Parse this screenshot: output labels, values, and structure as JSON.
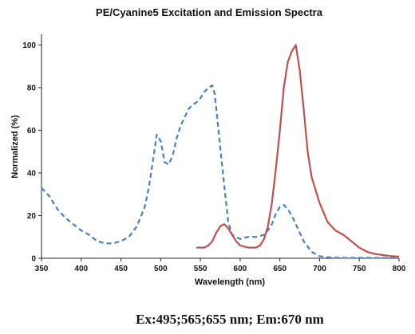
{
  "chart_data": {
    "type": "line",
    "title": "PE/Cyanine5 Excitation and Emission Spectra",
    "xlabel": "Wavelength (nm)",
    "ylabel": "Normalized (%)",
    "xlim": [
      350,
      800
    ],
    "ylim": [
      0,
      105
    ],
    "x_ticks": [
      350,
      400,
      450,
      500,
      550,
      600,
      650,
      700,
      750,
      800
    ],
    "y_ticks": [
      0,
      20,
      40,
      60,
      80,
      100
    ],
    "grid": false,
    "legend": "none",
    "series": [
      {
        "role": "excitation",
        "color": "#4a7fc1",
        "style": "dashed",
        "x": [
          350,
          360,
          370,
          380,
          390,
          400,
          410,
          420,
          430,
          440,
          450,
          460,
          470,
          480,
          485,
          490,
          495,
          500,
          505,
          510,
          515,
          520,
          525,
          530,
          535,
          540,
          545,
          550,
          555,
          560,
          565,
          568,
          570,
          575,
          580,
          585,
          590,
          595,
          600,
          610,
          620,
          630,
          635,
          640,
          645,
          650,
          655,
          660,
          665,
          670,
          680,
          690,
          700,
          710,
          720,
          740,
          760,
          780,
          800
        ],
        "y": [
          33,
          29,
          23,
          19,
          16,
          13,
          11,
          8,
          7,
          7,
          8,
          10,
          15,
          24,
          33,
          45,
          58,
          55,
          45,
          44,
          48,
          56,
          62,
          66,
          70,
          72,
          73,
          75,
          78,
          80,
          81,
          77,
          70,
          52,
          34,
          17,
          11,
          10,
          9,
          10,
          10,
          11,
          13,
          16,
          21,
          24,
          25,
          23,
          20,
          16,
          8,
          3,
          1,
          0.5,
          0.3,
          0.2,
          0.2,
          0.2,
          0.2
        ]
      },
      {
        "role": "emission",
        "color": "#c0504d",
        "style": "solid",
        "x": [
          545,
          555,
          560,
          565,
          570,
          575,
          580,
          585,
          590,
          595,
          600,
          610,
          620,
          625,
          630,
          635,
          640,
          645,
          650,
          655,
          660,
          665,
          670,
          675,
          680,
          685,
          690,
          700,
          710,
          720,
          730,
          740,
          750,
          760,
          770,
          780,
          790,
          800
        ],
        "y": [
          5,
          5,
          6,
          8,
          12,
          15,
          16,
          14,
          11,
          8,
          6,
          5,
          5,
          6,
          9,
          15,
          26,
          42,
          60,
          80,
          92,
          97,
          100,
          88,
          70,
          50,
          38,
          26,
          17,
          13,
          11,
          8,
          5,
          3,
          2,
          1.5,
          1,
          0.8
        ]
      }
    ]
  },
  "caption": "Ex:495;565;655 nm; Em:670 nm"
}
